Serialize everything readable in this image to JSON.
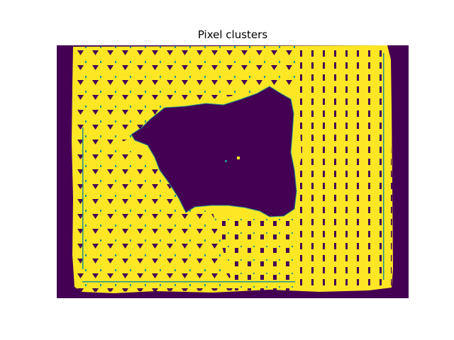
{
  "chart_data": {
    "type": "heatmap",
    "title": "Pixel clusters",
    "xlabel": "",
    "ylabel": "",
    "axes_visible": false,
    "grid": false,
    "legend": "none",
    "colormap": "viridis",
    "n_clusters": 2,
    "series": [
      {
        "name": "",
        "cluster": 0,
        "color": "#440154"
      },
      {
        "name": "",
        "cluster": 1,
        "color": "#fde725"
      }
    ],
    "edge_color": "#21918c"
  }
}
